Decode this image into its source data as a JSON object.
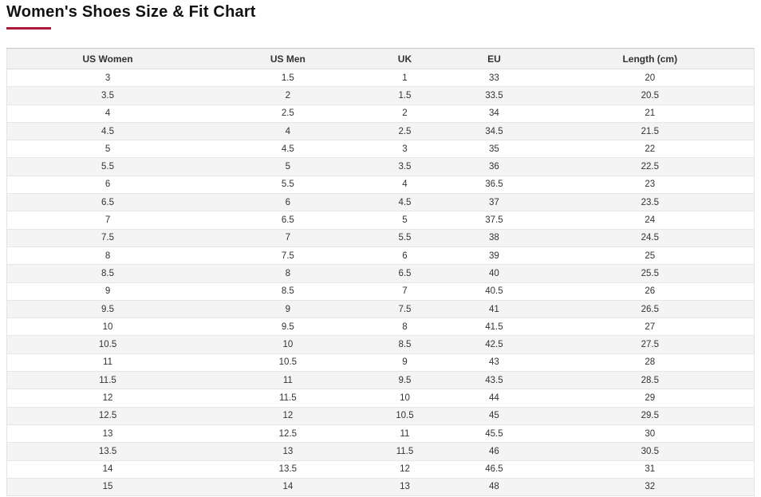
{
  "page": {
    "title": "Women's Shoes Size & Fit Chart"
  },
  "accent_color": "#aa1937",
  "chart_data": {
    "type": "table",
    "title": "Women's Shoes Size & Fit Chart",
    "columns": [
      "US Women",
      "US Men",
      "UK",
      "EU",
      "Length (cm)"
    ],
    "rows": [
      [
        "3",
        "1.5",
        "1",
        "33",
        "20"
      ],
      [
        "3.5",
        "2",
        "1.5",
        "33.5",
        "20.5"
      ],
      [
        "4",
        "2.5",
        "2",
        "34",
        "21"
      ],
      [
        "4.5",
        "4",
        "2.5",
        "34.5",
        "21.5"
      ],
      [
        "5",
        "4.5",
        "3",
        "35",
        "22"
      ],
      [
        "5.5",
        "5",
        "3.5",
        "36",
        "22.5"
      ],
      [
        "6",
        "5.5",
        "4",
        "36.5",
        "23"
      ],
      [
        "6.5",
        "6",
        "4.5",
        "37",
        "23.5"
      ],
      [
        "7",
        "6.5",
        "5",
        "37.5",
        "24"
      ],
      [
        "7.5",
        "7",
        "5.5",
        "38",
        "24.5"
      ],
      [
        "8",
        "7.5",
        "6",
        "39",
        "25"
      ],
      [
        "8.5",
        "8",
        "6.5",
        "40",
        "25.5"
      ],
      [
        "9",
        "8.5",
        "7",
        "40.5",
        "26"
      ],
      [
        "9.5",
        "9",
        "7.5",
        "41",
        "26.5"
      ],
      [
        "10",
        "9.5",
        "8",
        "41.5",
        "27"
      ],
      [
        "10.5",
        "10",
        "8.5",
        "42.5",
        "27.5"
      ],
      [
        "11",
        "10.5",
        "9",
        "43",
        "28"
      ],
      [
        "11.5",
        "11",
        "9.5",
        "43.5",
        "28.5"
      ],
      [
        "12",
        "11.5",
        "10",
        "44",
        "29"
      ],
      [
        "12.5",
        "12",
        "10.5",
        "45",
        "29.5"
      ],
      [
        "13",
        "12.5",
        "11",
        "45.5",
        "30"
      ],
      [
        "13.5",
        "13",
        "11.5",
        "46",
        "30.5"
      ],
      [
        "14",
        "13.5",
        "12",
        "46.5",
        "31"
      ],
      [
        "15",
        "14",
        "13",
        "48",
        "32"
      ]
    ]
  }
}
